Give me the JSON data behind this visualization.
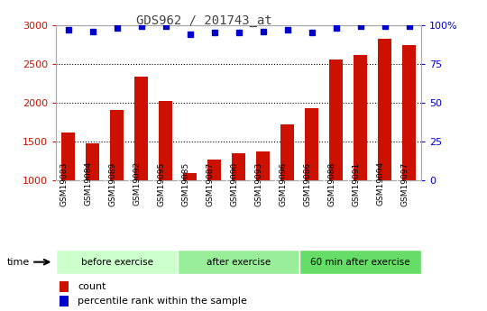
{
  "title": "GDS962 / 201743_at",
  "categories": [
    "GSM19083",
    "GSM19084",
    "GSM19089",
    "GSM19092",
    "GSM19095",
    "GSM19085",
    "GSM19087",
    "GSM19090",
    "GSM19093",
    "GSM19096",
    "GSM19086",
    "GSM19088",
    "GSM19091",
    "GSM19094",
    "GSM19097"
  ],
  "counts": [
    1610,
    1480,
    1910,
    2330,
    2020,
    1095,
    1270,
    1350,
    1375,
    1720,
    1930,
    2560,
    2610,
    2820,
    2740
  ],
  "percentile_ranks": [
    97,
    96,
    98,
    99,
    99,
    94,
    95,
    95,
    96,
    97,
    95,
    98,
    99,
    99,
    99
  ],
  "groups": [
    {
      "label": "before exercise",
      "start": 0,
      "end": 5
    },
    {
      "label": "after exercise",
      "start": 5,
      "end": 10
    },
    {
      "label": "60 min after exercise",
      "start": 10,
      "end": 15
    }
  ],
  "group_colors": [
    "#ccffcc",
    "#99ee99",
    "#66dd66"
  ],
  "ylim": [
    1000,
    3000
  ],
  "yticks": [
    1000,
    1500,
    2000,
    2500,
    3000
  ],
  "y2ticks": [
    0,
    25,
    50,
    75,
    100
  ],
  "bar_color": "#cc1100",
  "dot_color": "#0000cc",
  "plot_bg_color": "#ffffff",
  "label_bg_color": "#cccccc",
  "title_color": "#444444",
  "yticklabel_color": "#cc1100",
  "y2ticklabel_color": "#0000cc"
}
